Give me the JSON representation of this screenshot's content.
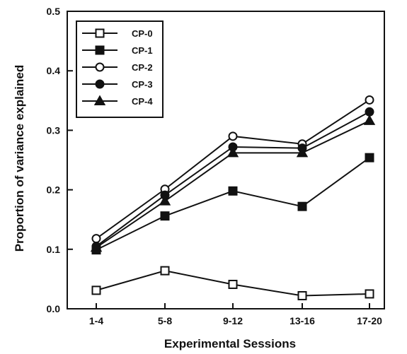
{
  "chart_data": {
    "type": "line",
    "title": "",
    "xlabel": "Experimental Sessions",
    "ylabel": "Proportion of variance explained",
    "categories": [
      "1-4",
      "5-8",
      "9-12",
      "13-16",
      "17-20"
    ],
    "ylim": [
      0,
      0.5
    ],
    "yticks": [
      "0.0",
      "0.1",
      "0.2",
      "0.3",
      "0.4",
      "0.5"
    ],
    "grid": false,
    "legend_position": "top-left",
    "series": [
      {
        "name": "CP-0",
        "marker": "square-open",
        "values": [
          0.031,
          0.064,
          0.041,
          0.022,
          0.025
        ]
      },
      {
        "name": "CP-1",
        "marker": "square-filled",
        "values": [
          0.099,
          0.156,
          0.198,
          0.172,
          0.254
        ]
      },
      {
        "name": "CP-2",
        "marker": "circle-open",
        "values": [
          0.118,
          0.201,
          0.29,
          0.277,
          0.351
        ]
      },
      {
        "name": "CP-3",
        "marker": "circle-filled",
        "values": [
          0.105,
          0.191,
          0.272,
          0.27,
          0.331
        ]
      },
      {
        "name": "CP-4",
        "marker": "triangle-filled",
        "values": [
          0.103,
          0.181,
          0.262,
          0.262,
          0.316
        ]
      }
    ]
  }
}
